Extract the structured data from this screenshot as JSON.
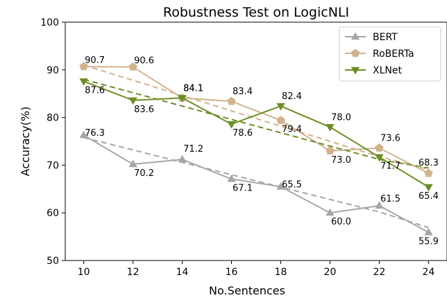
{
  "chart_data": {
    "type": "line",
    "title": "Robustness Test on LogicNLI",
    "xlabel": "No.Sentences",
    "ylabel": "Accuracy(%)",
    "x": [
      10,
      12,
      14,
      16,
      18,
      20,
      22,
      24
    ],
    "xlim": [
      9.25,
      24.75
    ],
    "ylim": [
      50,
      100
    ],
    "yticks": [
      50,
      60,
      70,
      80,
      90,
      100
    ],
    "grid": false,
    "legend_position": "top-right",
    "series": [
      {
        "name": "BERT",
        "values": [
          76.3,
          70.2,
          71.2,
          67.1,
          65.5,
          60.0,
          61.5,
          55.9
        ],
        "labels": [
          "76.3",
          "70.2",
          "71.2",
          "67.1",
          "65.5",
          "60.0",
          "61.5",
          "55.9"
        ],
        "trend": [
          75.8,
          73.2,
          70.6,
          68.0,
          65.4,
          62.8,
          60.2,
          56.9
        ],
        "color": "#a6a6a6",
        "marker": "triangle-up"
      },
      {
        "name": "RoBERTa",
        "values": [
          90.7,
          90.6,
          84.1,
          83.4,
          79.4,
          73.0,
          73.6,
          68.3
        ],
        "labels": [
          "90.7",
          "90.6",
          "84.1",
          "83.4",
          "79.4",
          "73.0",
          "73.6",
          "68.3"
        ],
        "trend": [
          91.0,
          87.8,
          84.6,
          81.4,
          78.2,
          75.0,
          71.8,
          69.1
        ],
        "color": "#d1b38e",
        "marker": "pentagon"
      },
      {
        "name": "XLNet",
        "values": [
          87.6,
          83.6,
          84.1,
          78.6,
          82.4,
          78.0,
          71.7,
          65.4
        ],
        "labels": [
          "87.6",
          "83.6",
          "84.1",
          "78.6",
          "82.4",
          "78.0",
          "71.7",
          "65.4"
        ],
        "trend": [
          88.0,
          85.2,
          82.4,
          79.6,
          76.8,
          74.0,
          71.2,
          69.4
        ],
        "color": "#6b8e23",
        "marker": "triangle-down"
      }
    ]
  }
}
